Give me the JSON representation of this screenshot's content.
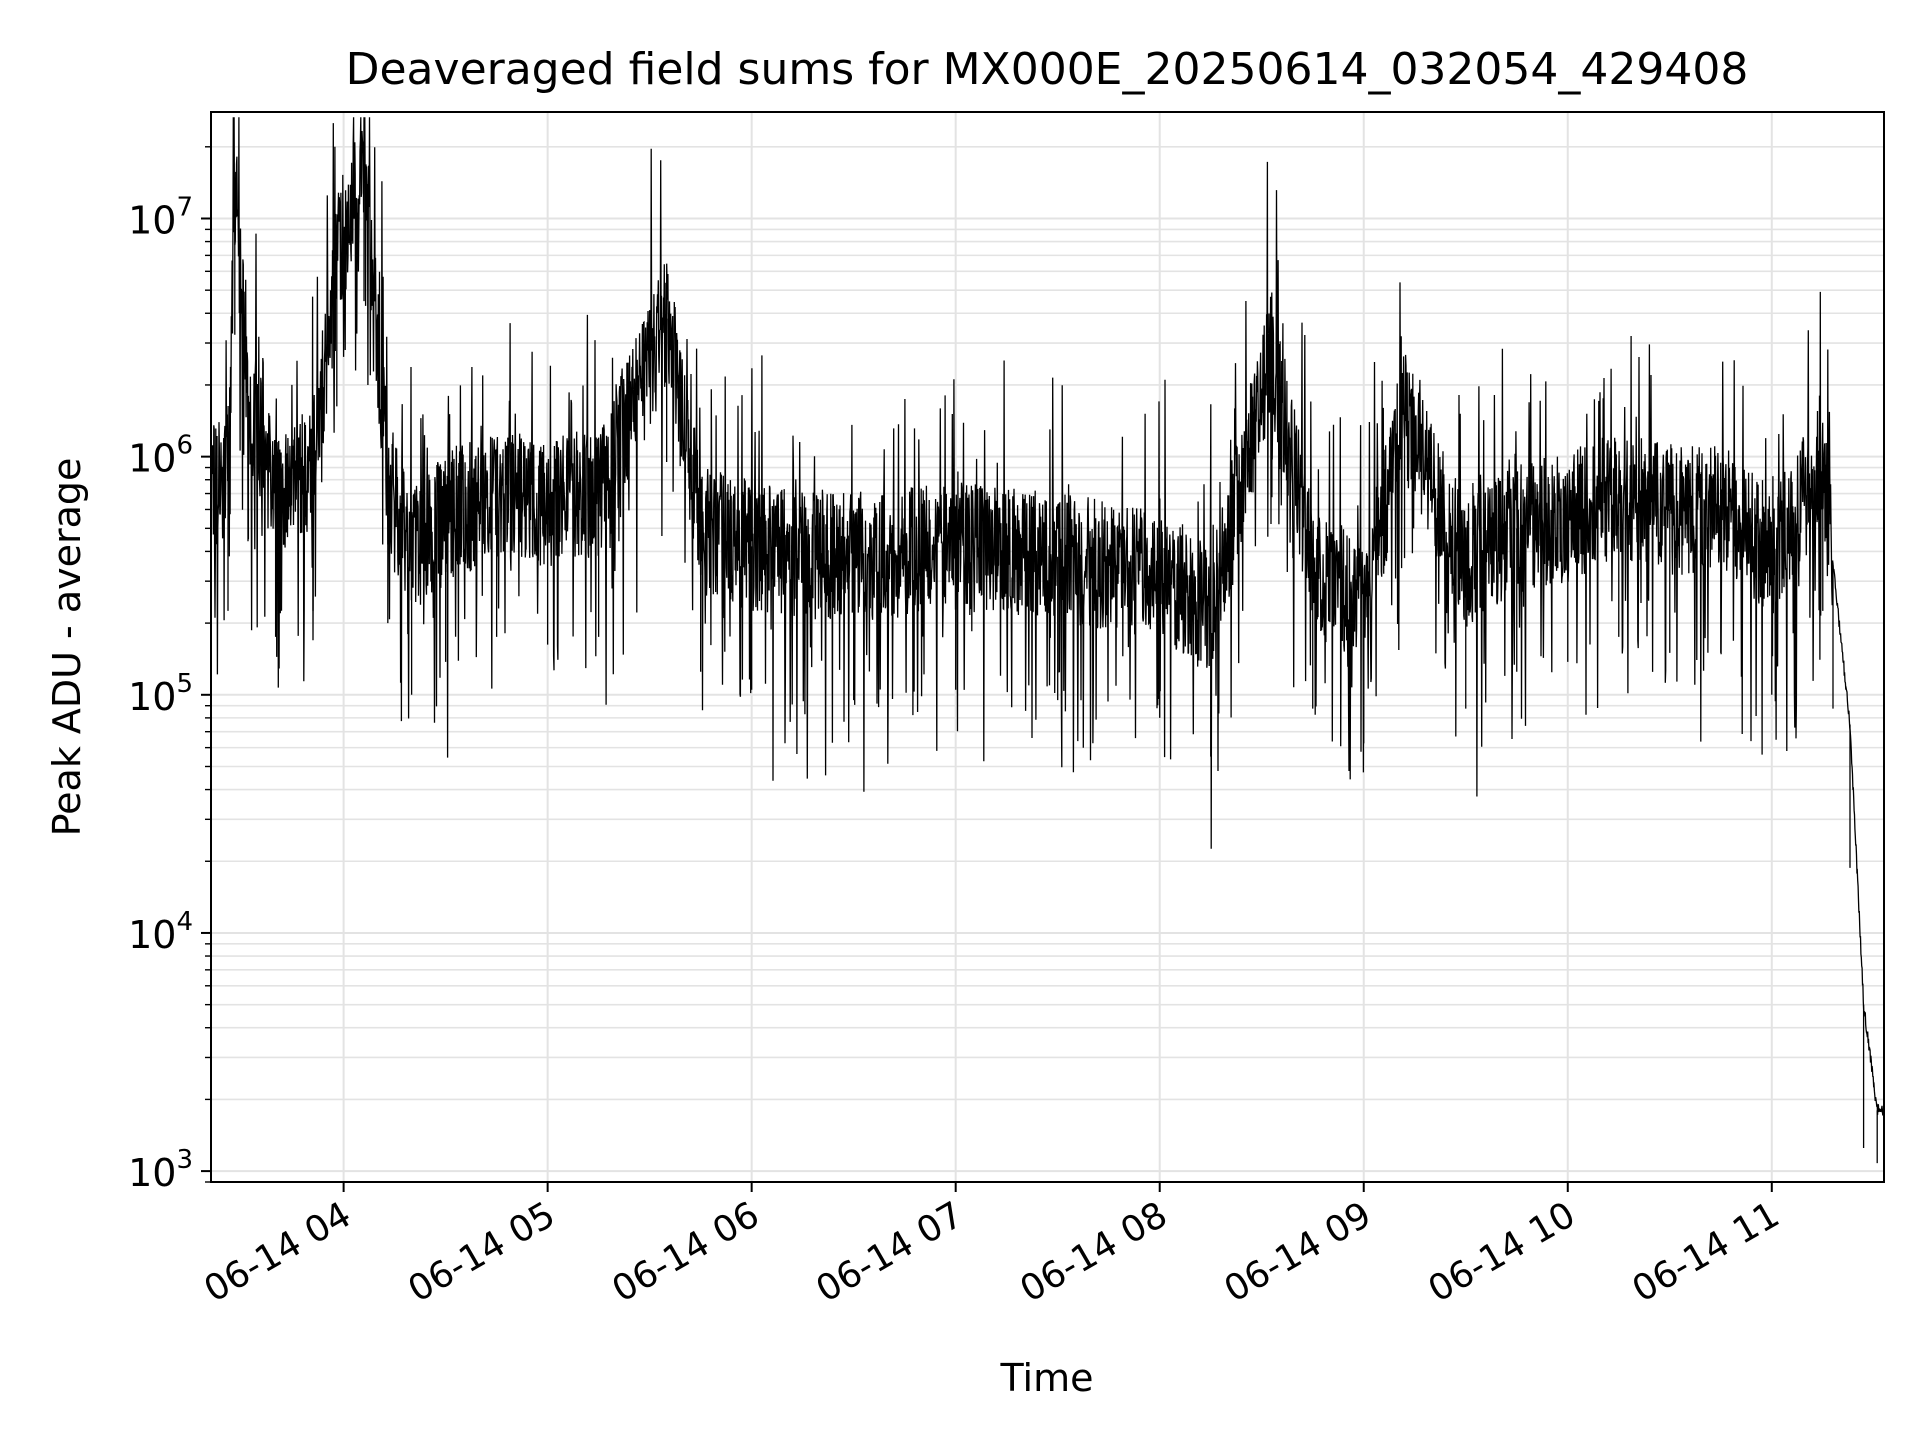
{
  "chart_data": {
    "type": "line",
    "title": "Deaveraged field sums for MX000E_20250614_032054_429408",
    "xlabel": "Time",
    "ylabel": "Peak ADU - average",
    "y_scale": "log",
    "ylim": [
      900,
      28000000
    ],
    "xlim": [
      "2025-06-14 03:21",
      "2025-06-14 11:33"
    ],
    "grid": "major and minor",
    "x_tick_labels": [
      "06-14 04",
      "06-14 05",
      "06-14 06",
      "06-14 07",
      "06-14 08",
      "06-14 09",
      "06-14 10",
      "06-14 11"
    ],
    "y_tick_labels": [
      {
        "base": "10",
        "exp": "3"
      },
      {
        "base": "10",
        "exp": "4"
      },
      {
        "base": "10",
        "exp": "5"
      },
      {
        "base": "10",
        "exp": "6"
      },
      {
        "base": "10",
        "exp": "7"
      }
    ],
    "series": [
      {
        "color": "#000000",
        "points": [
          [
            "2025-06-14 03:21",
            700000
          ],
          [
            "2025-06-14 03:26",
            900000
          ],
          [
            "2025-06-14 03:28",
            13000000
          ],
          [
            "2025-06-14 03:32",
            1800000
          ],
          [
            "2025-06-14 03:40",
            700000
          ],
          [
            "2025-06-14 03:51",
            900000
          ],
          [
            "2025-06-14 03:58",
            6500000
          ],
          [
            "2025-06-14 04:06",
            18000000
          ],
          [
            "2025-06-14 04:13",
            800000
          ],
          [
            "2025-06-14 04:20",
            400000
          ],
          [
            "2025-06-14 04:30",
            550000
          ],
          [
            "2025-06-14 04:45",
            700000
          ],
          [
            "2025-06-14 05:00",
            650000
          ],
          [
            "2025-06-14 05:15",
            700000
          ],
          [
            "2025-06-14 05:35",
            3800000
          ],
          [
            "2025-06-14 05:45",
            500000
          ],
          [
            "2025-06-14 06:00",
            420000
          ],
          [
            "2025-06-14 06:30",
            380000
          ],
          [
            "2025-06-14 07:00",
            420000
          ],
          [
            "2025-06-14 07:30",
            380000
          ],
          [
            "2025-06-14 08:00",
            320000
          ],
          [
            "2025-06-14 08:15",
            220000
          ],
          [
            "2025-06-14 08:33",
            2700000
          ],
          [
            "2025-06-14 08:45",
            350000
          ],
          [
            "2025-06-14 09:00",
            250000
          ],
          [
            "2025-06-14 09:12",
            1500000
          ],
          [
            "2025-06-14 09:30",
            350000
          ],
          [
            "2025-06-14 09:45",
            500000
          ],
          [
            "2025-06-14 10:00",
            550000
          ],
          [
            "2025-06-14 10:15",
            700000
          ],
          [
            "2025-06-14 10:30",
            600000
          ],
          [
            "2025-06-14 10:45",
            600000
          ],
          [
            "2025-06-14 11:00",
            400000
          ],
          [
            "2025-06-14 11:15",
            900000
          ],
          [
            "2025-06-14 11:18",
            350000
          ],
          [
            "2025-06-14 11:23",
            75000
          ],
          [
            "2025-06-14 11:27",
            5000
          ],
          [
            "2025-06-14 11:31",
            1800
          ]
        ]
      }
    ]
  }
}
